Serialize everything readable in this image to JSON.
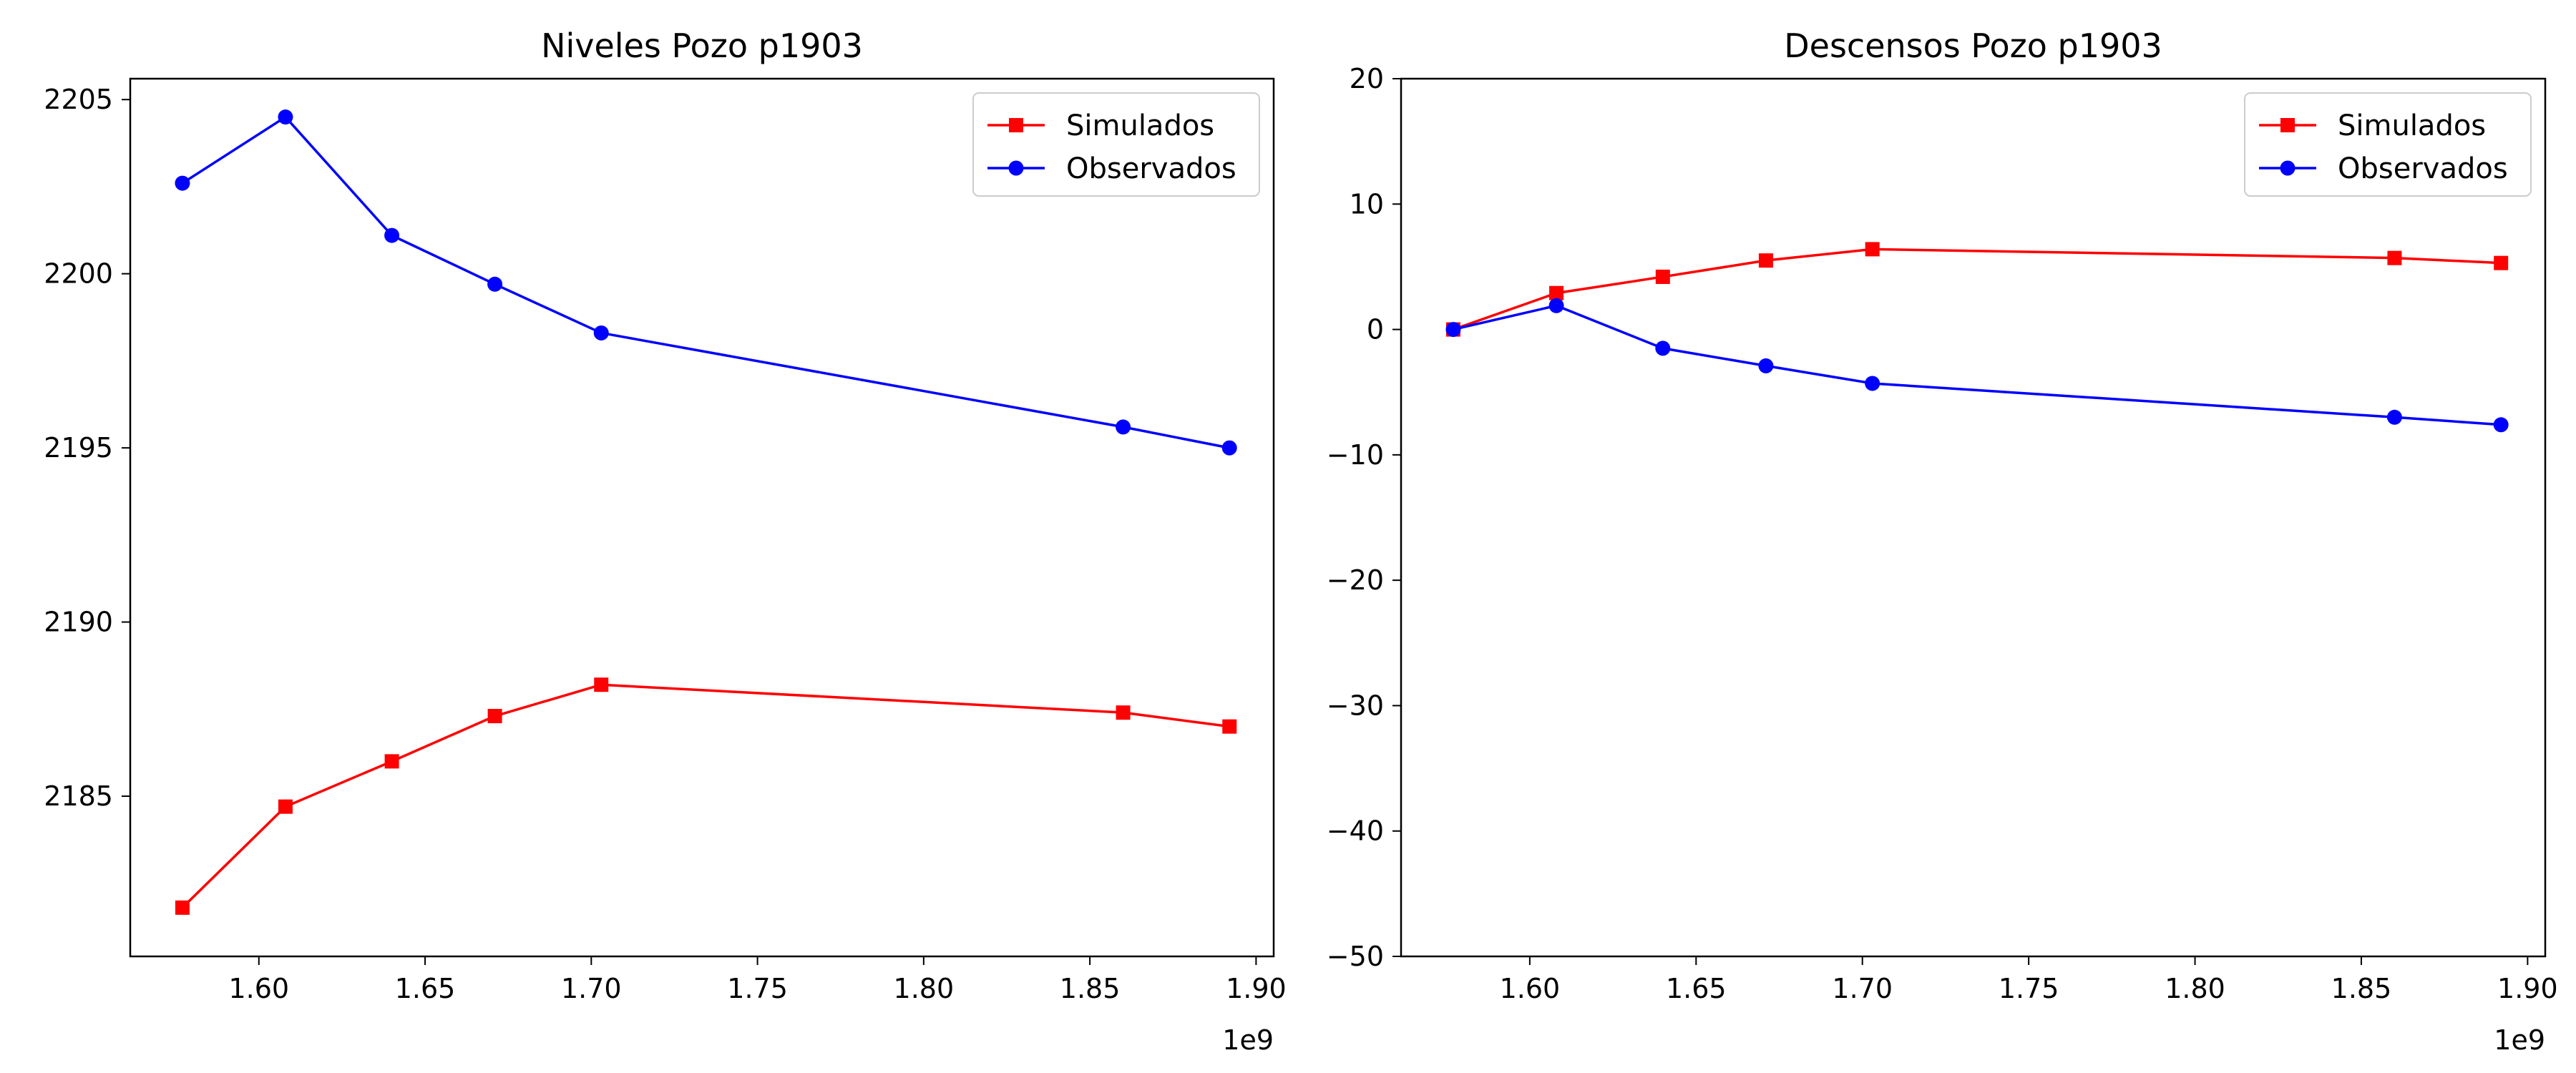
{
  "chart_data": [
    {
      "type": "line",
      "title": "Niveles Pozo p1903",
      "xlabel": "",
      "ylabel": "",
      "x_offset_label": "1e9",
      "xlim": [
        1.5613,
        1.9053
      ],
      "ylim": [
        2180.4,
        2205.6
      ],
      "x_ticks": [
        1.6,
        1.65,
        1.7,
        1.75,
        1.8,
        1.85,
        1.9
      ],
      "x_tick_labels": [
        "1.60",
        "1.65",
        "1.70",
        "1.75",
        "1.80",
        "1.85",
        "1.90"
      ],
      "y_ticks": [
        2185,
        2190,
        2195,
        2200,
        2205
      ],
      "y_tick_labels": [
        "2185",
        "2190",
        "2195",
        "2200",
        "2205"
      ],
      "x": [
        1.577,
        1.608,
        1.64,
        1.671,
        1.703,
        1.86,
        1.892
      ],
      "series": [
        {
          "name": "Simulados",
          "color": "#ff0000",
          "marker": "square",
          "values": [
            2181.8,
            2184.7,
            2186.0,
            2187.3,
            2188.2,
            2187.4,
            2187.0
          ]
        },
        {
          "name": "Observados",
          "color": "#0000ff",
          "marker": "circle",
          "values": [
            2202.6,
            2204.5,
            2201.1,
            2199.7,
            2198.3,
            2195.6,
            2195.0
          ]
        }
      ],
      "legend": "upper right",
      "grid": false
    },
    {
      "type": "line",
      "title": "Descensos Pozo p1903",
      "xlabel": "",
      "ylabel": "",
      "x_offset_label": "1e9",
      "xlim": [
        1.5613,
        1.9053
      ],
      "ylim": [
        -50,
        20
      ],
      "x_ticks": [
        1.6,
        1.65,
        1.7,
        1.75,
        1.8,
        1.85,
        1.9
      ],
      "x_tick_labels": [
        "1.60",
        "1.65",
        "1.70",
        "1.75",
        "1.80",
        "1.85",
        "1.90"
      ],
      "y_ticks": [
        -50,
        -40,
        -30,
        -20,
        -10,
        0,
        10,
        20
      ],
      "y_tick_labels": [
        "−50",
        "−40",
        "−30",
        "−20",
        "−10",
        "0",
        "10",
        "20"
      ],
      "x": [
        1.577,
        1.608,
        1.64,
        1.671,
        1.703,
        1.86,
        1.892
      ],
      "series": [
        {
          "name": "Simulados",
          "color": "#ff0000",
          "marker": "square",
          "values": [
            0.0,
            2.9,
            4.2,
            5.5,
            6.4,
            5.7,
            5.3
          ]
        },
        {
          "name": "Observados",
          "color": "#0000ff",
          "marker": "circle",
          "values": [
            0.0,
            1.9,
            -1.5,
            -2.9,
            -4.3,
            -7.0,
            -7.6
          ]
        }
      ],
      "legend": "upper right",
      "grid": false
    }
  ]
}
